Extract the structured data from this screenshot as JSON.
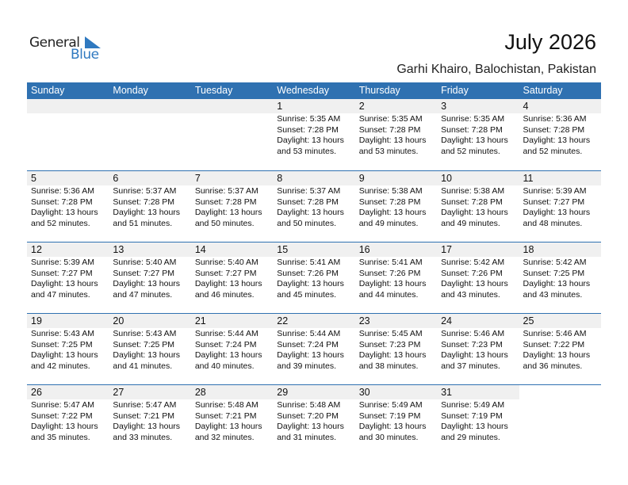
{
  "logo": {
    "general": "General",
    "blue": "Blue",
    "accent": "#2f79c0"
  },
  "header": {
    "title": "July 2026",
    "location": "Garhi Khairo, Balochistan, Pakistan"
  },
  "colors": {
    "header_bg": "#2f71b1",
    "date_band": "#f0f0f0"
  },
  "weekdays": [
    "Sunday",
    "Monday",
    "Tuesday",
    "Wednesday",
    "Thursday",
    "Friday",
    "Saturday"
  ],
  "weeks": [
    [
      null,
      null,
      null,
      {
        "day": "1",
        "sunrise": "Sunrise: 5:35 AM",
        "sunset": "Sunset: 7:28 PM",
        "daylight": "Daylight: 13 hours",
        "minutes": "and 53 minutes."
      },
      {
        "day": "2",
        "sunrise": "Sunrise: 5:35 AM",
        "sunset": "Sunset: 7:28 PM",
        "daylight": "Daylight: 13 hours",
        "minutes": "and 53 minutes."
      },
      {
        "day": "3",
        "sunrise": "Sunrise: 5:35 AM",
        "sunset": "Sunset: 7:28 PM",
        "daylight": "Daylight: 13 hours",
        "minutes": "and 52 minutes."
      },
      {
        "day": "4",
        "sunrise": "Sunrise: 5:36 AM",
        "sunset": "Sunset: 7:28 PM",
        "daylight": "Daylight: 13 hours",
        "minutes": "and 52 minutes."
      }
    ],
    [
      {
        "day": "5",
        "sunrise": "Sunrise: 5:36 AM",
        "sunset": "Sunset: 7:28 PM",
        "daylight": "Daylight: 13 hours",
        "minutes": "and 52 minutes."
      },
      {
        "day": "6",
        "sunrise": "Sunrise: 5:37 AM",
        "sunset": "Sunset: 7:28 PM",
        "daylight": "Daylight: 13 hours",
        "minutes": "and 51 minutes."
      },
      {
        "day": "7",
        "sunrise": "Sunrise: 5:37 AM",
        "sunset": "Sunset: 7:28 PM",
        "daylight": "Daylight: 13 hours",
        "minutes": "and 50 minutes."
      },
      {
        "day": "8",
        "sunrise": "Sunrise: 5:37 AM",
        "sunset": "Sunset: 7:28 PM",
        "daylight": "Daylight: 13 hours",
        "minutes": "and 50 minutes."
      },
      {
        "day": "9",
        "sunrise": "Sunrise: 5:38 AM",
        "sunset": "Sunset: 7:28 PM",
        "daylight": "Daylight: 13 hours",
        "minutes": "and 49 minutes."
      },
      {
        "day": "10",
        "sunrise": "Sunrise: 5:38 AM",
        "sunset": "Sunset: 7:28 PM",
        "daylight": "Daylight: 13 hours",
        "minutes": "and 49 minutes."
      },
      {
        "day": "11",
        "sunrise": "Sunrise: 5:39 AM",
        "sunset": "Sunset: 7:27 PM",
        "daylight": "Daylight: 13 hours",
        "minutes": "and 48 minutes."
      }
    ],
    [
      {
        "day": "12",
        "sunrise": "Sunrise: 5:39 AM",
        "sunset": "Sunset: 7:27 PM",
        "daylight": "Daylight: 13 hours",
        "minutes": "and 47 minutes."
      },
      {
        "day": "13",
        "sunrise": "Sunrise: 5:40 AM",
        "sunset": "Sunset: 7:27 PM",
        "daylight": "Daylight: 13 hours",
        "minutes": "and 47 minutes."
      },
      {
        "day": "14",
        "sunrise": "Sunrise: 5:40 AM",
        "sunset": "Sunset: 7:27 PM",
        "daylight": "Daylight: 13 hours",
        "minutes": "and 46 minutes."
      },
      {
        "day": "15",
        "sunrise": "Sunrise: 5:41 AM",
        "sunset": "Sunset: 7:26 PM",
        "daylight": "Daylight: 13 hours",
        "minutes": "and 45 minutes."
      },
      {
        "day": "16",
        "sunrise": "Sunrise: 5:41 AM",
        "sunset": "Sunset: 7:26 PM",
        "daylight": "Daylight: 13 hours",
        "minutes": "and 44 minutes."
      },
      {
        "day": "17",
        "sunrise": "Sunrise: 5:42 AM",
        "sunset": "Sunset: 7:26 PM",
        "daylight": "Daylight: 13 hours",
        "minutes": "and 43 minutes."
      },
      {
        "day": "18",
        "sunrise": "Sunrise: 5:42 AM",
        "sunset": "Sunset: 7:25 PM",
        "daylight": "Daylight: 13 hours",
        "minutes": "and 43 minutes."
      }
    ],
    [
      {
        "day": "19",
        "sunrise": "Sunrise: 5:43 AM",
        "sunset": "Sunset: 7:25 PM",
        "daylight": "Daylight: 13 hours",
        "minutes": "and 42 minutes."
      },
      {
        "day": "20",
        "sunrise": "Sunrise: 5:43 AM",
        "sunset": "Sunset: 7:25 PM",
        "daylight": "Daylight: 13 hours",
        "minutes": "and 41 minutes."
      },
      {
        "day": "21",
        "sunrise": "Sunrise: 5:44 AM",
        "sunset": "Sunset: 7:24 PM",
        "daylight": "Daylight: 13 hours",
        "minutes": "and 40 minutes."
      },
      {
        "day": "22",
        "sunrise": "Sunrise: 5:44 AM",
        "sunset": "Sunset: 7:24 PM",
        "daylight": "Daylight: 13 hours",
        "minutes": "and 39 minutes."
      },
      {
        "day": "23",
        "sunrise": "Sunrise: 5:45 AM",
        "sunset": "Sunset: 7:23 PM",
        "daylight": "Daylight: 13 hours",
        "minutes": "and 38 minutes."
      },
      {
        "day": "24",
        "sunrise": "Sunrise: 5:46 AM",
        "sunset": "Sunset: 7:23 PM",
        "daylight": "Daylight: 13 hours",
        "minutes": "and 37 minutes."
      },
      {
        "day": "25",
        "sunrise": "Sunrise: 5:46 AM",
        "sunset": "Sunset: 7:22 PM",
        "daylight": "Daylight: 13 hours",
        "minutes": "and 36 minutes."
      }
    ],
    [
      {
        "day": "26",
        "sunrise": "Sunrise: 5:47 AM",
        "sunset": "Sunset: 7:22 PM",
        "daylight": "Daylight: 13 hours",
        "minutes": "and 35 minutes."
      },
      {
        "day": "27",
        "sunrise": "Sunrise: 5:47 AM",
        "sunset": "Sunset: 7:21 PM",
        "daylight": "Daylight: 13 hours",
        "minutes": "and 33 minutes."
      },
      {
        "day": "28",
        "sunrise": "Sunrise: 5:48 AM",
        "sunset": "Sunset: 7:21 PM",
        "daylight": "Daylight: 13 hours",
        "minutes": "and 32 minutes."
      },
      {
        "day": "29",
        "sunrise": "Sunrise: 5:48 AM",
        "sunset": "Sunset: 7:20 PM",
        "daylight": "Daylight: 13 hours",
        "minutes": "and 31 minutes."
      },
      {
        "day": "30",
        "sunrise": "Sunrise: 5:49 AM",
        "sunset": "Sunset: 7:19 PM",
        "daylight": "Daylight: 13 hours",
        "minutes": "and 30 minutes."
      },
      {
        "day": "31",
        "sunrise": "Sunrise: 5:49 AM",
        "sunset": "Sunset: 7:19 PM",
        "daylight": "Daylight: 13 hours",
        "minutes": "and 29 minutes."
      },
      null
    ]
  ]
}
